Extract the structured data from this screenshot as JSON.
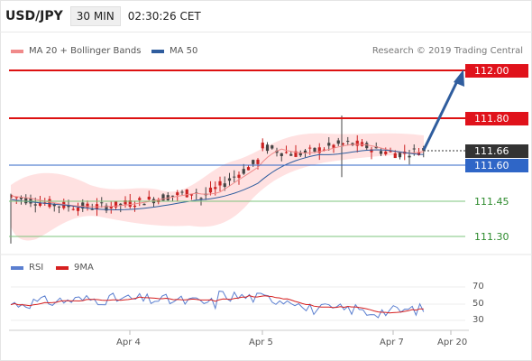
{
  "header": {
    "symbol": "USD/JPY",
    "timeframe": "30 MIN",
    "time": "02:30:26 CET"
  },
  "legend": {
    "ma20_label": "MA 20 + Bollinger Bands",
    "ma20_color": "#f08a8a",
    "ma50_label": "MA 50",
    "ma50_color": "#2f5d9e"
  },
  "credit": "Research © 2019 Trading Central",
  "price_levels": [
    {
      "value": "112.00",
      "style": "red"
    },
    {
      "value": "111.80",
      "style": "red"
    },
    {
      "value": "111.66",
      "style": "dark"
    },
    {
      "value": "111.60",
      "style": "blue"
    },
    {
      "value": "111.45",
      "style": "green"
    },
    {
      "value": "111.30",
      "style": "green"
    }
  ],
  "rsi_legend": {
    "rsi_label": "RSI",
    "rsi_color": "#5b7fd0",
    "ma9_label": "9MA",
    "ma9_color": "#d62020"
  },
  "rsi_scale": [
    "70",
    "50",
    "30"
  ],
  "x_axis": [
    "Apr 4",
    "Apr 5",
    "Apr 7",
    "Apr 20"
  ],
  "colors": {
    "bull": "#cc2222",
    "bear": "#444444",
    "bands": "#ffd7d7",
    "resistance": "#dd1111",
    "support_blue": "#2f66c7",
    "support_green": "#7cc47c",
    "arrow": "#2f5d9e"
  }
}
